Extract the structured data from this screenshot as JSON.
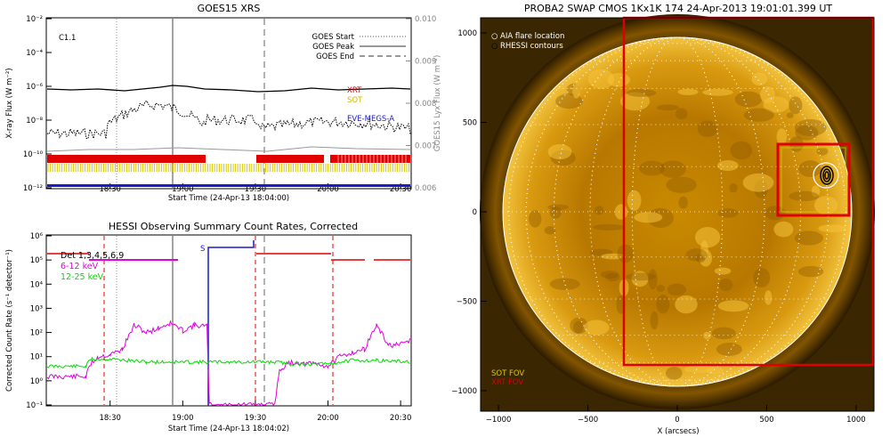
{
  "chart_data": [
    {
      "type": "line",
      "title": "GOES15 XRS",
      "xlabel": "Start Time (24-Apr-13 18:04:00)",
      "ylabel": "X-ray Flux (W m⁻²)",
      "ylabel_right": "GOES15 Lyx Flux (W m⁻²)",
      "x_ticks": [
        "18:30",
        "19:00",
        "19:30",
        "20:00",
        "20:30"
      ],
      "y_ticks": [
        "10⁻²",
        "10⁻⁴",
        "10⁻⁶",
        "10⁻⁸",
        "10⁻¹⁰",
        "10⁻¹²"
      ],
      "y_ticks_right": [
        "0.010",
        "0.009",
        "0.008",
        "0.007",
        "0.006"
      ],
      "ylim": [
        1e-12,
        0.01
      ],
      "ylim_right": [
        0.006,
        0.01
      ],
      "class_label": "C1.1",
      "legend": [
        {
          "label": "GOES Start",
          "style": "dotted"
        },
        {
          "label": "GOES Peak",
          "style": "solid"
        },
        {
          "label": "GOES End",
          "style": "dashed"
        }
      ],
      "instrument_labels": [
        {
          "label": "XRT",
          "color": "#e00000"
        },
        {
          "label": "SOT",
          "color": "#d6c800"
        },
        {
          "label": "EVE-MEGS-A",
          "color": "#1a1acc"
        }
      ],
      "events": {
        "start": "18:31",
        "peak": "18:58",
        "end": "19:35"
      }
    },
    {
      "type": "line",
      "title": "HESSI Observing Summary Count Rates, Corrected",
      "xlabel": "Start Time (24-Apr-13 18:04:02)",
      "ylabel": "Corrected Count Rate (s⁻¹ detector⁻¹)",
      "x_ticks": [
        "18:30",
        "19:00",
        "19:30",
        "20:00",
        "20:30"
      ],
      "y_ticks": [
        "10⁶",
        "10⁵",
        "10⁴",
        "10³",
        "10²",
        "10¹",
        "10⁰",
        "10⁻¹"
      ],
      "ylim": [
        0.1,
        1000000.0
      ],
      "legend": [
        {
          "label": "Det 1,3,4,5,6,9",
          "color": "#000000"
        },
        {
          "label": "6-12 keV",
          "color": "#e000e0"
        },
        {
          "label": "12-25 keV",
          "color": "#00dd00"
        }
      ],
      "saa_label": "S",
      "series": [
        {
          "name": "6-12 keV",
          "color": "#e000e0",
          "x": [
            "18:04",
            "18:20",
            "18:22",
            "18:25",
            "18:30",
            "18:35",
            "18:40",
            "18:45",
            "18:50",
            "18:55",
            "19:00",
            "19:05",
            "19:10",
            "19:11",
            "19:38",
            "19:40",
            "19:45",
            "19:50",
            "19:55",
            "20:00",
            "20:05",
            "20:10",
            "20:15",
            "20:20",
            "20:25",
            "20:30",
            "20:34"
          ],
          "values": [
            1.5,
            1.5,
            5,
            10,
            12,
            20,
            200,
            100,
            150,
            250,
            120,
            200,
            180,
            0.1,
            0.1,
            3,
            6,
            5,
            5,
            4,
            10,
            15,
            20,
            200,
            30,
            30,
            50
          ]
        },
        {
          "name": "12-25 keV",
          "color": "#00dd00",
          "x": [
            "18:04",
            "18:20",
            "18:22",
            "18:30",
            "18:45",
            "19:00",
            "19:11",
            "19:38",
            "19:45",
            "20:00",
            "20:10",
            "20:20",
            "20:34"
          ],
          "values": [
            4,
            4,
            8,
            8,
            6,
            6,
            6,
            6,
            5,
            5,
            7,
            7,
            6
          ]
        }
      ]
    },
    {
      "type": "heatmap",
      "title": "PROBA2 SWAP CMOS 1Kx1K 174 24-Apr-2013 19:01:01.399 UT",
      "xlabel": "X (arcsecs)",
      "x_ticks": [
        "−1000",
        "−500",
        "0",
        "500",
        "1000"
      ],
      "y_ticks": [
        "1000",
        "500",
        "0",
        "−500",
        "−1000"
      ],
      "xlim": [
        -1100,
        1100
      ],
      "ylim": [
        -1100,
        1100
      ],
      "legend_top": [
        {
          "label": "AIA flare location",
          "symbol": "○"
        },
        {
          "label": "RHESSI contours",
          "symbol": "○"
        }
      ],
      "legend_bottom": [
        {
          "label": "SOT FOV",
          "color": "#d6c800"
        },
        {
          "label": "XRT FOV",
          "color": "#e00000"
        }
      ]
    }
  ]
}
